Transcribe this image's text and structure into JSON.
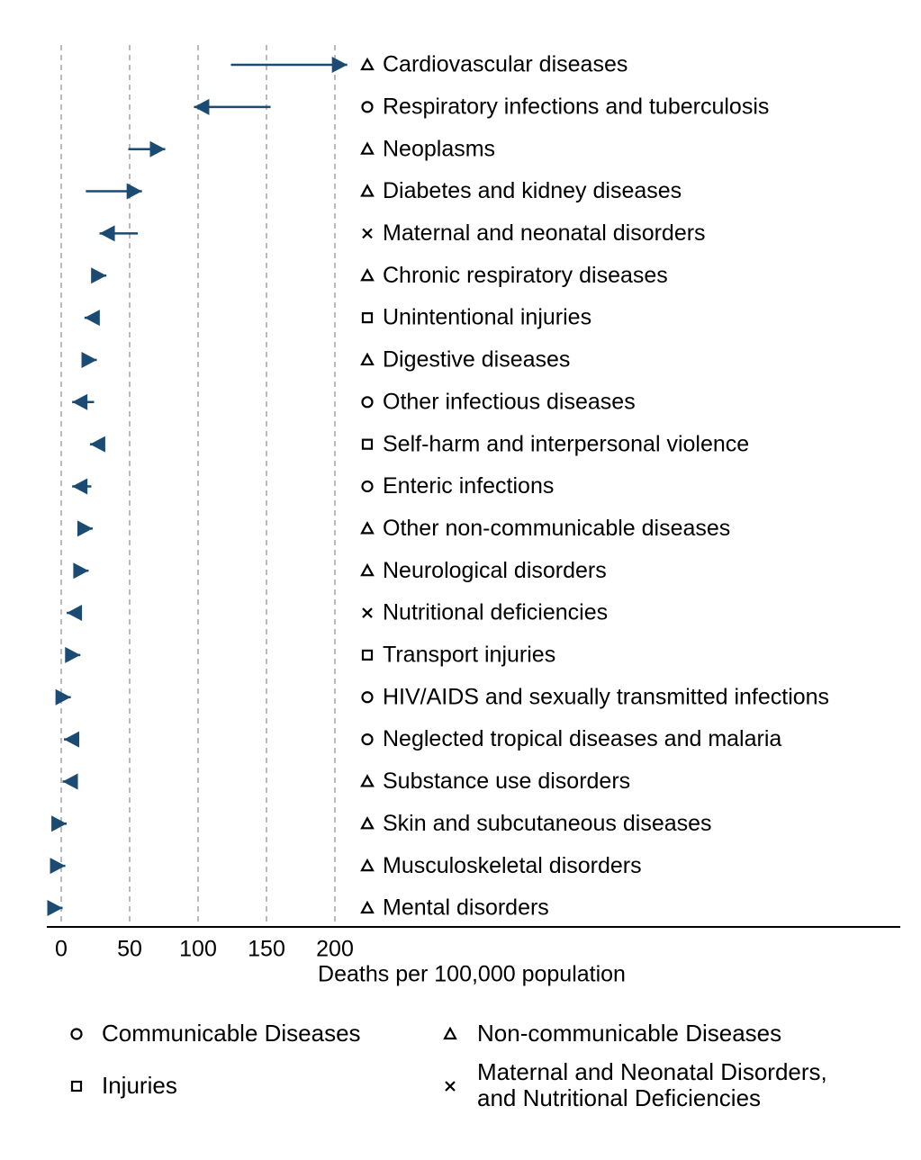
{
  "chart_data": {
    "type": "arrow",
    "xlabel": "Deaths per 100,000 population",
    "xlim": [
      -10,
      210
    ],
    "xticks": [
      0,
      50,
      100,
      150,
      200
    ],
    "grid": true,
    "color": "#1b4a72",
    "categories": [
      "Cardiovascular diseases",
      "Respiratory infections and tuberculosis",
      "Neoplasms",
      "Diabetes and kidney diseases",
      "Maternal and neonatal disorders",
      "Chronic respiratory diseases",
      "Unintentional injuries",
      "Digestive diseases",
      "Other infectious diseases",
      "Self-harm and interpersonal violence",
      "Enteric infections",
      "Other non-communicable diseases",
      "Neurological disorders",
      "Nutritional deficiencies",
      "Transport injuries",
      "HIV/AIDS and sexually transmitted infections",
      "Neglected tropical diseases and malaria",
      "Substance use disorders",
      "Skin and subcutaneous diseases",
      "Musculoskeletal disorders",
      "Mental disorders"
    ],
    "start": [
      124,
      153,
      49,
      18,
      56,
      24,
      24,
      20,
      24,
      30,
      22,
      16,
      13,
      12,
      7,
      0,
      12,
      10,
      0,
      0,
      0
    ],
    "end": [
      209,
      97,
      76,
      59,
      28,
      33,
      17,
      26,
      8,
      21,
      8,
      23,
      20,
      4,
      14,
      7,
      2,
      1,
      4,
      3,
      1
    ],
    "category_group": [
      1,
      0,
      1,
      1,
      3,
      1,
      2,
      1,
      0,
      2,
      0,
      1,
      1,
      3,
      2,
      0,
      0,
      1,
      1,
      1,
      1
    ],
    "groups": [
      {
        "name": "Communicable Diseases",
        "marker": "circle"
      },
      {
        "name": "Non-communicable Diseases",
        "marker": "triangle"
      },
      {
        "name": "Injuries",
        "marker": "square"
      },
      {
        "name": "Maternal and Neonatal Disorders,\nand Nutritional Deficiencies",
        "marker": "x"
      }
    ]
  }
}
